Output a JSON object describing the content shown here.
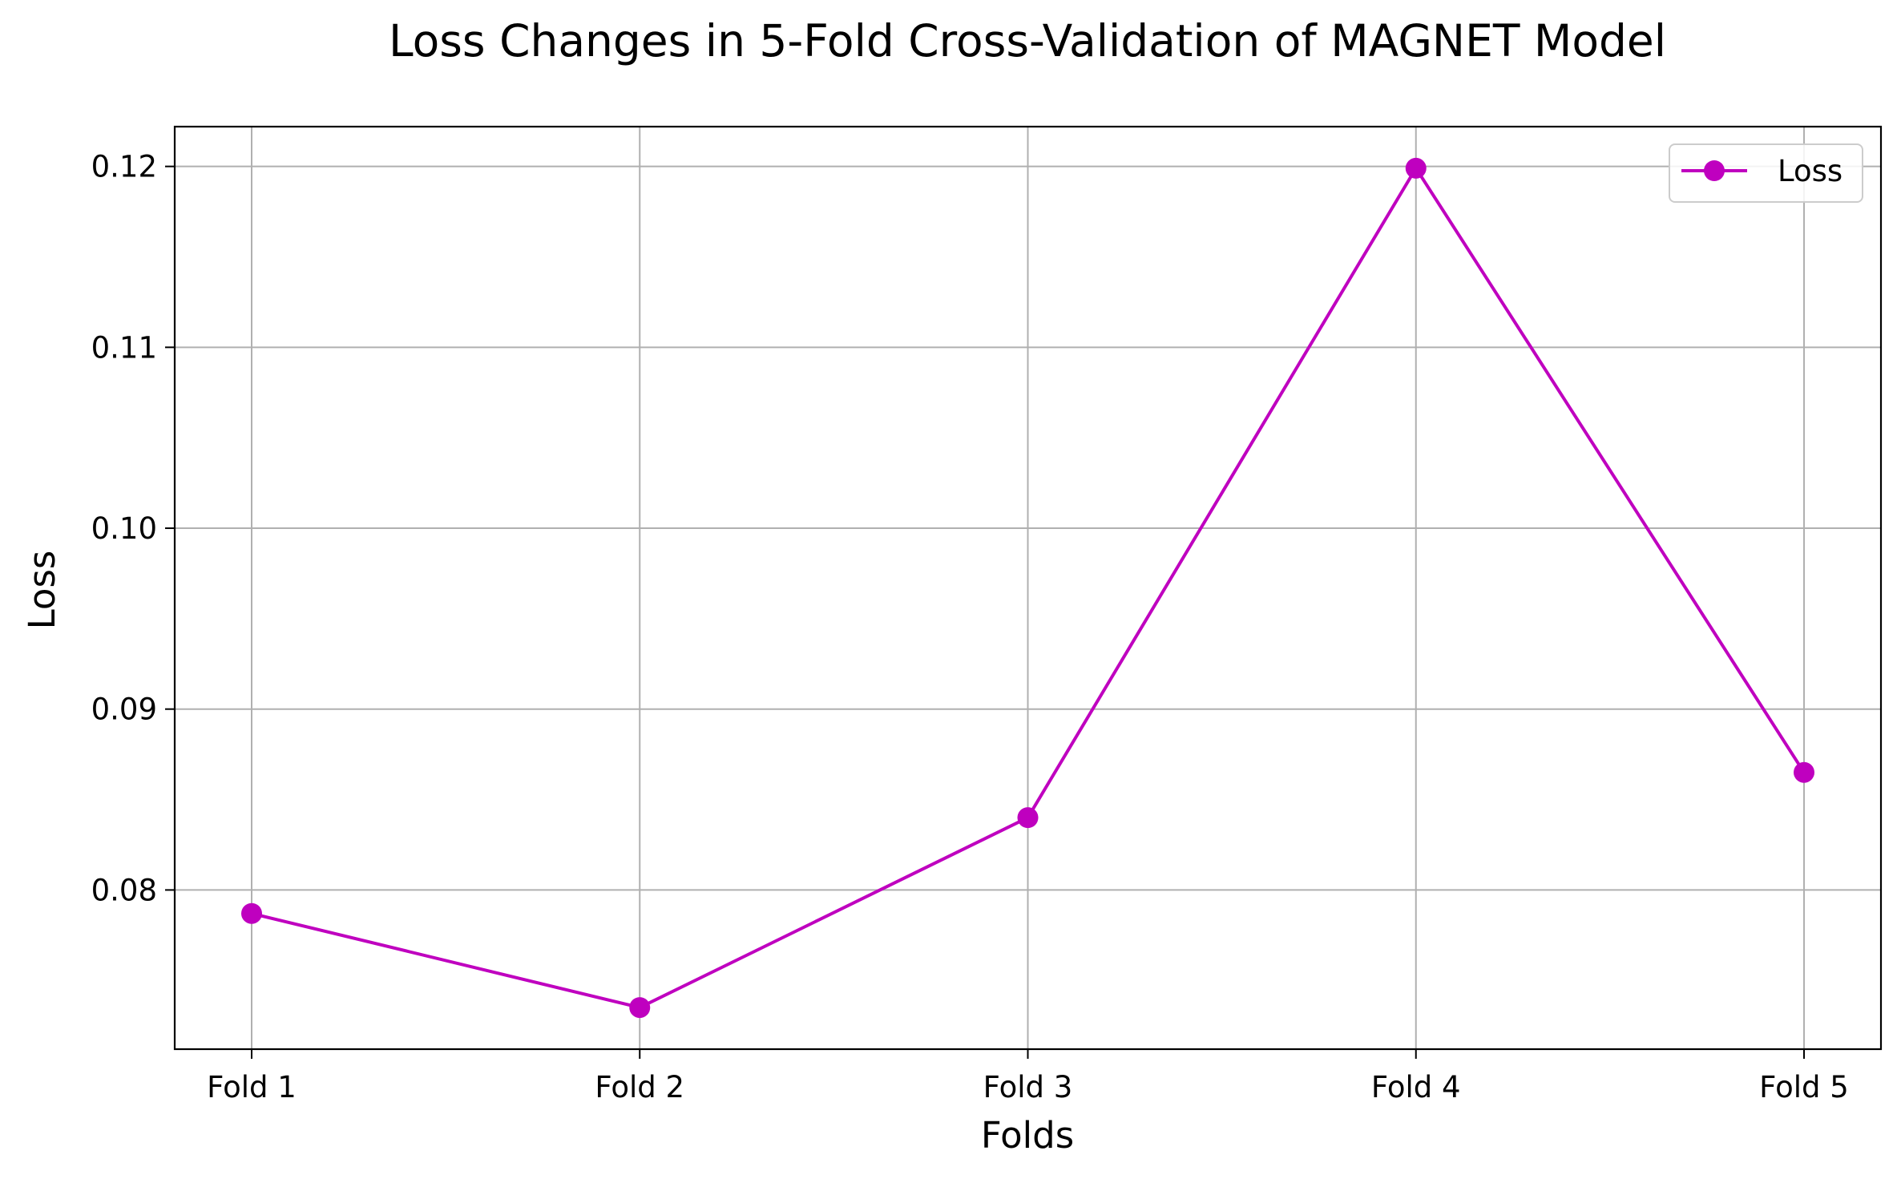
{
  "chart_data": {
    "type": "line",
    "title": "Loss Changes in 5-Fold Cross-Validation of MAGNET Model",
    "xlabel": "Folds",
    "ylabel": "Loss",
    "categories": [
      "Fold 1",
      "Fold 2",
      "Fold 3",
      "Fold 4",
      "Fold 5"
    ],
    "series": [
      {
        "name": "Loss",
        "values": [
          0.0787,
          0.0735,
          0.084,
          0.1199,
          0.0865
        ],
        "color": "#bf00bf",
        "marker": "circle"
      }
    ],
    "yticks": [
      0.08,
      0.09,
      0.1,
      0.11,
      0.12
    ],
    "ytick_labels": [
      "0.08",
      "0.09",
      "0.10",
      "0.11",
      "0.12"
    ],
    "ylim": [
      0.0712,
      0.1222
    ],
    "grid": true,
    "legend_position": "top-right"
  }
}
